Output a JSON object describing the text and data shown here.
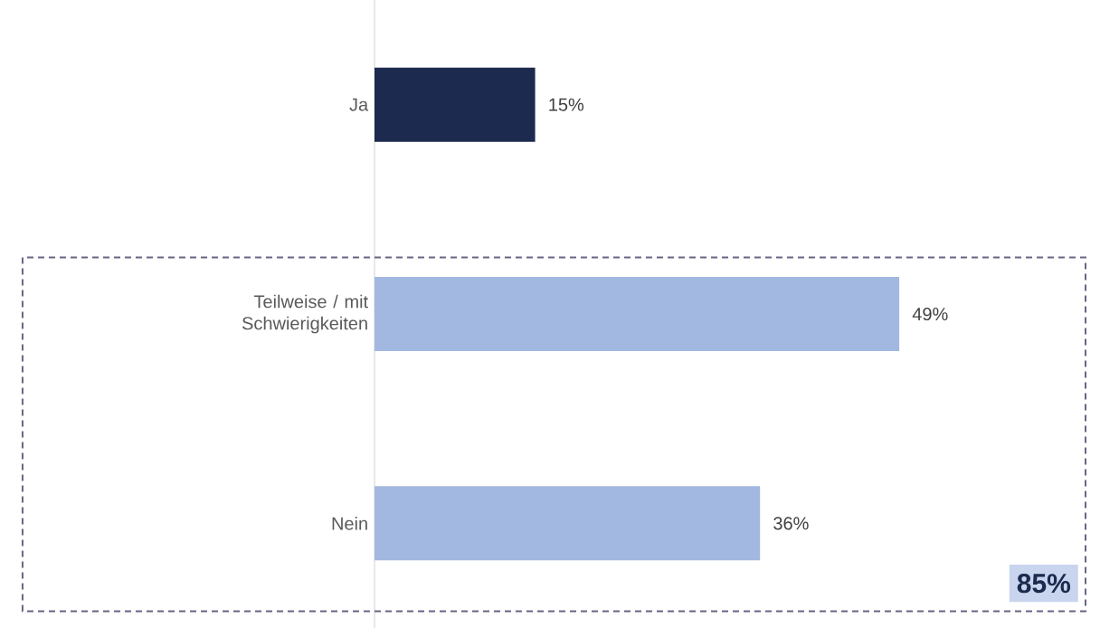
{
  "chart_data": {
    "type": "bar",
    "orientation": "horizontal",
    "categories": [
      "Ja",
      "Teilweise / mit Schwierigkeiten",
      "Nein"
    ],
    "values": [
      15,
      49,
      36
    ],
    "colors": [
      "#1b2a4e",
      "#a2b8e0",
      "#a2b8e0"
    ],
    "value_labels": [
      "15%",
      "49%",
      "36%"
    ],
    "annotations": [
      "85%"
    ]
  }
}
